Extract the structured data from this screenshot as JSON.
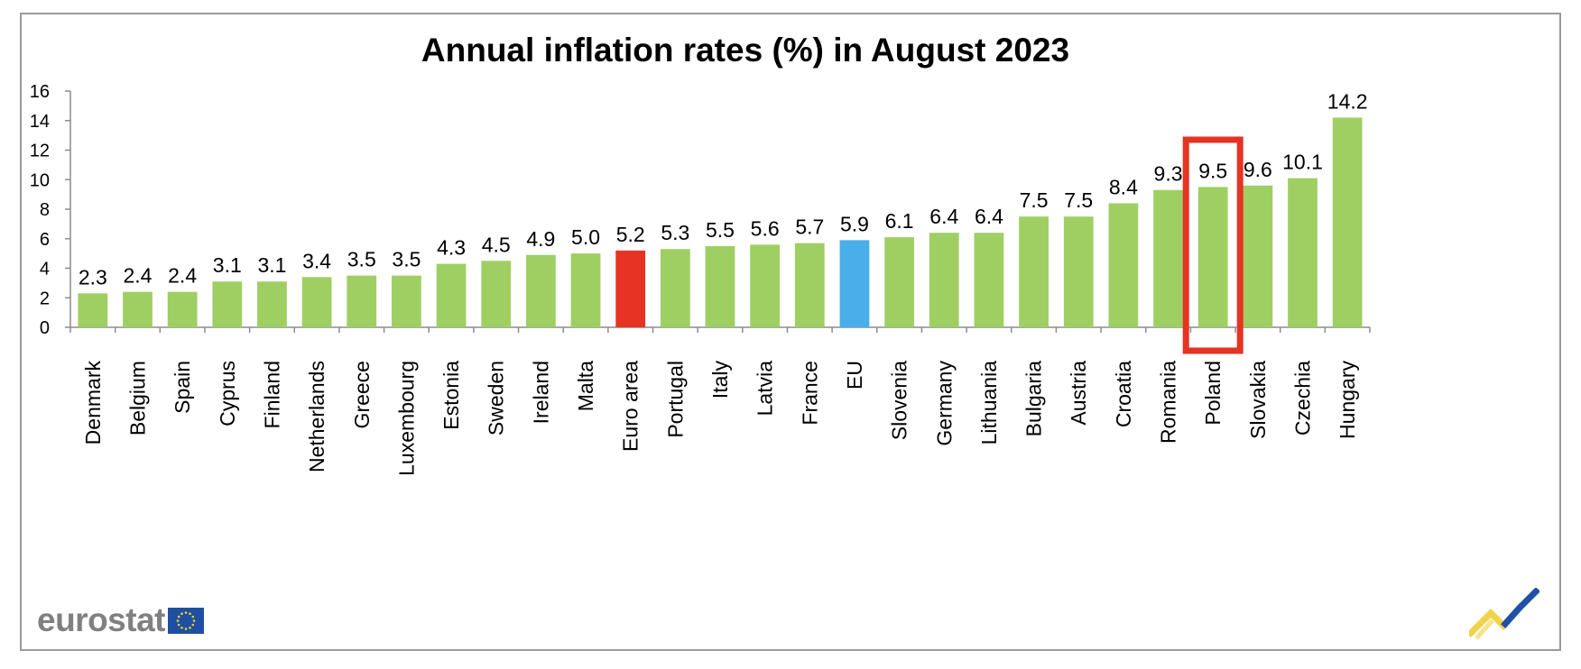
{
  "chart_data": {
    "type": "bar",
    "title": "Annual inflation rates (%) in August 2023",
    "xlabel": "",
    "ylabel": "",
    "ylim": [
      0,
      16
    ],
    "yticks": [
      0,
      2,
      4,
      6,
      8,
      10,
      12,
      14,
      16
    ],
    "grid": false,
    "categories": [
      "Denmark",
      "Belgium",
      "Spain",
      "Cyprus",
      "Finland",
      "Netherlands",
      "Greece",
      "Luxembourg",
      "Estonia",
      "Sweden",
      "Ireland",
      "Malta",
      "Euro area",
      "Portugal",
      "Italy",
      "Latvia",
      "France",
      "EU",
      "Slovenia",
      "Germany",
      "Lithuania",
      "Bulgaria",
      "Austria",
      "Croatia",
      "Romania",
      "Poland",
      "Slovakia",
      "Czechia",
      "Hungary"
    ],
    "values": [
      2.3,
      2.4,
      2.4,
      3.1,
      3.1,
      3.4,
      3.5,
      3.5,
      4.3,
      4.5,
      4.9,
      5.0,
      5.2,
      5.3,
      5.5,
      5.6,
      5.7,
      5.9,
      6.1,
      6.4,
      6.4,
      7.5,
      7.5,
      8.4,
      9.3,
      9.5,
      9.6,
      10.1,
      14.2
    ],
    "value_labels": [
      "2.3",
      "2.4",
      "2.4",
      "3.1",
      "3.1",
      "3.4",
      "3.5",
      "3.5",
      "4.3",
      "4.5",
      "4.9",
      "5.0",
      "5.2",
      "5.3",
      "5.5",
      "5.6",
      "5.7",
      "5.9",
      "6.1",
      "6.4",
      "6.4",
      "7.5",
      "7.5",
      "8.4",
      "9.3",
      "9.5",
      "9.6",
      "10.1",
      "14.2"
    ],
    "colors": {
      "default": "#9fcf63",
      "Euro area": "#e63323",
      "EU": "#4aaeea"
    },
    "highlight": {
      "category": "Poland",
      "color": "#e63323"
    }
  },
  "brand": {
    "logo_text": "eurostat",
    "flag_color": "#1f4fa3",
    "star_color": "#f7d117"
  }
}
